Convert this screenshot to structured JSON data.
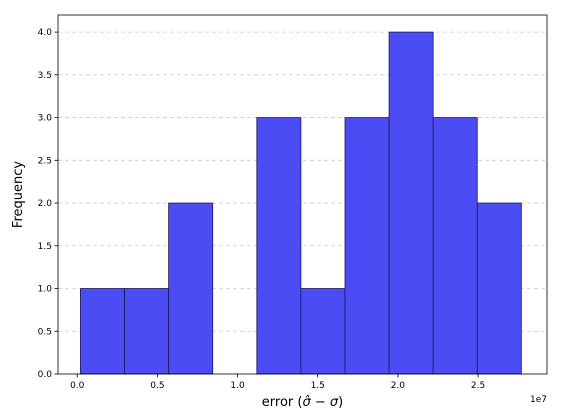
{
  "chart_data": {
    "type": "histogram",
    "title": "",
    "xlabel_prefix": "error (",
    "xlabel_sigma_hat": "σ̂",
    "xlabel_minus": " − ",
    "xlabel_sigma": "σ",
    "xlabel_suffix": ")",
    "ylabel": "Frequency",
    "x_offset_label": "1e7",
    "xlim": [
      -0.12,
      2.93
    ],
    "ylim": [
      0,
      4.2
    ],
    "x_ticks": [
      0.0,
      0.5,
      1.0,
      1.5,
      2.0,
      2.5
    ],
    "x_tick_labels": [
      "0.0",
      "0.5",
      "1.0",
      "1.5",
      "2.0",
      "2.5"
    ],
    "y_ticks": [
      0.0,
      0.5,
      1.0,
      1.5,
      2.0,
      2.5,
      3.0,
      3.5,
      4.0
    ],
    "y_tick_labels": [
      "0.0",
      "0.5",
      "1.0",
      "1.5",
      "2.0",
      "2.5",
      "3.0",
      "3.5",
      "4.0"
    ],
    "grid": "y-dashed",
    "bin_edges": [
      0.02,
      0.295,
      0.57,
      0.845,
      1.12,
      1.395,
      1.67,
      1.945,
      2.22,
      2.495,
      2.77
    ],
    "counts": [
      1,
      1,
      2,
      0,
      3,
      1,
      3,
      4,
      3,
      2
    ],
    "bar_color": "#4c4cf5",
    "edge_color": "#1a1a5a",
    "grid_color": "#cccccc"
  }
}
